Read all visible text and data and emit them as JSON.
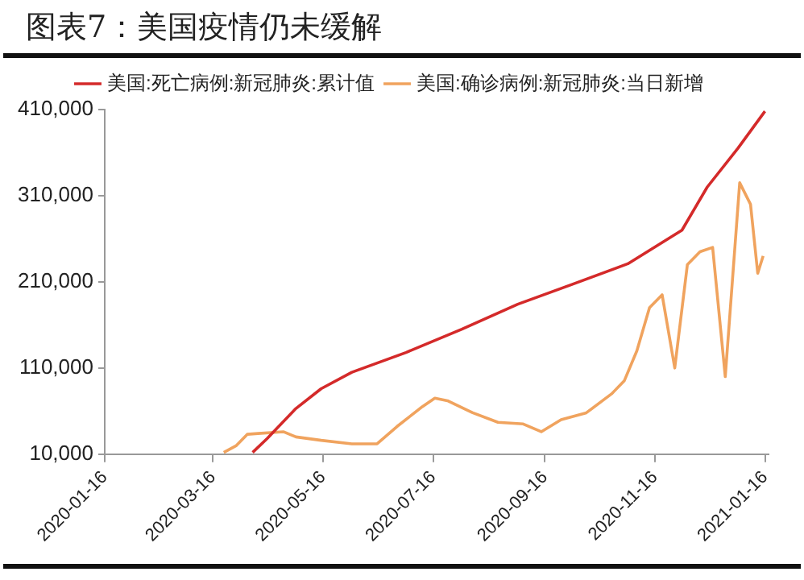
{
  "chart_data": {
    "type": "line",
    "title": "图表7：美国疫情仍未缓解",
    "xlim": [
      "2020-01-16",
      "2021-01-18"
    ],
    "xticks": [
      "2020-01-16",
      "2020-03-16",
      "2020-05-16",
      "2020-07-16",
      "2020-09-16",
      "2020-11-16",
      "2021-01-16"
    ],
    "ylim": [
      10000,
      410000
    ],
    "yticks": [
      {
        "value": 10000,
        "label": "10,000"
      },
      {
        "value": 110000,
        "label": "110,000"
      },
      {
        "value": 210000,
        "label": "210,000"
      },
      {
        "value": 310000,
        "label": "310,000"
      },
      {
        "value": 410000,
        "label": "410,000"
      }
    ],
    "grid": false,
    "legend": "top",
    "marker": "none",
    "line_style": "solid",
    "series": [
      {
        "name": "美国:死亡病例:新冠肺炎:累计值",
        "color": "#d42a2a",
        "x": [
          "2020-04-07",
          "2020-04-15",
          "2020-05-01",
          "2020-05-15",
          "2020-06-01",
          "2020-07-01",
          "2020-08-01",
          "2020-09-01",
          "2020-10-01",
          "2020-11-01",
          "2020-12-01",
          "2020-12-15",
          "2021-01-01",
          "2021-01-16"
        ],
        "values": [
          12000,
          28000,
          63000,
          86000,
          105000,
          128000,
          155000,
          184000,
          207000,
          231000,
          270000,
          320000,
          365000,
          408000
        ]
      },
      {
        "name": "美国:确诊病例:新冠肺炎:当日新增",
        "color": "#f0a35e",
        "x": [
          "2020-03-22",
          "2020-03-29",
          "2020-04-04",
          "2020-04-10",
          "2020-04-24",
          "2020-05-01",
          "2020-05-15",
          "2020-06-01",
          "2020-06-15",
          "2020-06-26",
          "2020-07-10",
          "2020-07-17",
          "2020-07-24",
          "2020-08-07",
          "2020-08-21",
          "2020-09-04",
          "2020-09-14",
          "2020-09-25",
          "2020-10-09",
          "2020-10-23",
          "2020-10-30",
          "2020-11-06",
          "2020-11-13",
          "2020-11-20",
          "2020-11-27",
          "2020-12-04",
          "2020-12-11",
          "2020-12-18",
          "2020-12-25",
          "2021-01-02",
          "2021-01-08",
          "2021-01-12",
          "2021-01-15"
        ],
        "values": [
          12000,
          20000,
          33000,
          34000,
          36000,
          30000,
          26000,
          22000,
          22000,
          42000,
          65000,
          75000,
          72000,
          58000,
          47000,
          45000,
          36000,
          50000,
          58000,
          80000,
          95000,
          130000,
          180000,
          195000,
          110000,
          230000,
          245000,
          250000,
          100000,
          325000,
          300000,
          220000,
          240000
        ]
      }
    ]
  }
}
